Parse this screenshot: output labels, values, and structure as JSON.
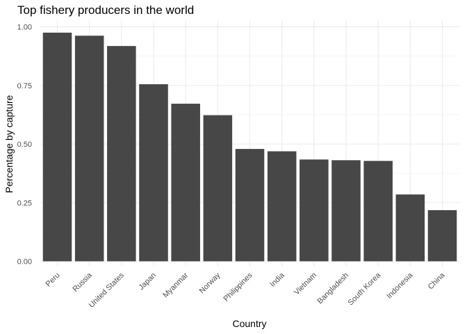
{
  "chart_data": {
    "type": "bar",
    "title": "Top fishery producers in the world",
    "xlabel": "Country",
    "ylabel": "Percentage by capture",
    "categories": [
      "Peru",
      "Russia",
      "United States",
      "Japan",
      "Myanmar",
      "Norway",
      "Philippines",
      "India",
      "Vietnam",
      "Bangladesh",
      "South Korea",
      "Indonesia",
      "China"
    ],
    "values": [
      0.975,
      0.962,
      0.918,
      0.755,
      0.672,
      0.623,
      0.479,
      0.469,
      0.434,
      0.431,
      0.428,
      0.285,
      0.218
    ],
    "ylim": [
      0,
      1.0
    ],
    "yticks": [
      "0.00",
      "0.25",
      "0.50",
      "0.75",
      "1.00"
    ],
    "grid": true,
    "bar_color": "#474747",
    "grid_color": "#ebebeb"
  }
}
